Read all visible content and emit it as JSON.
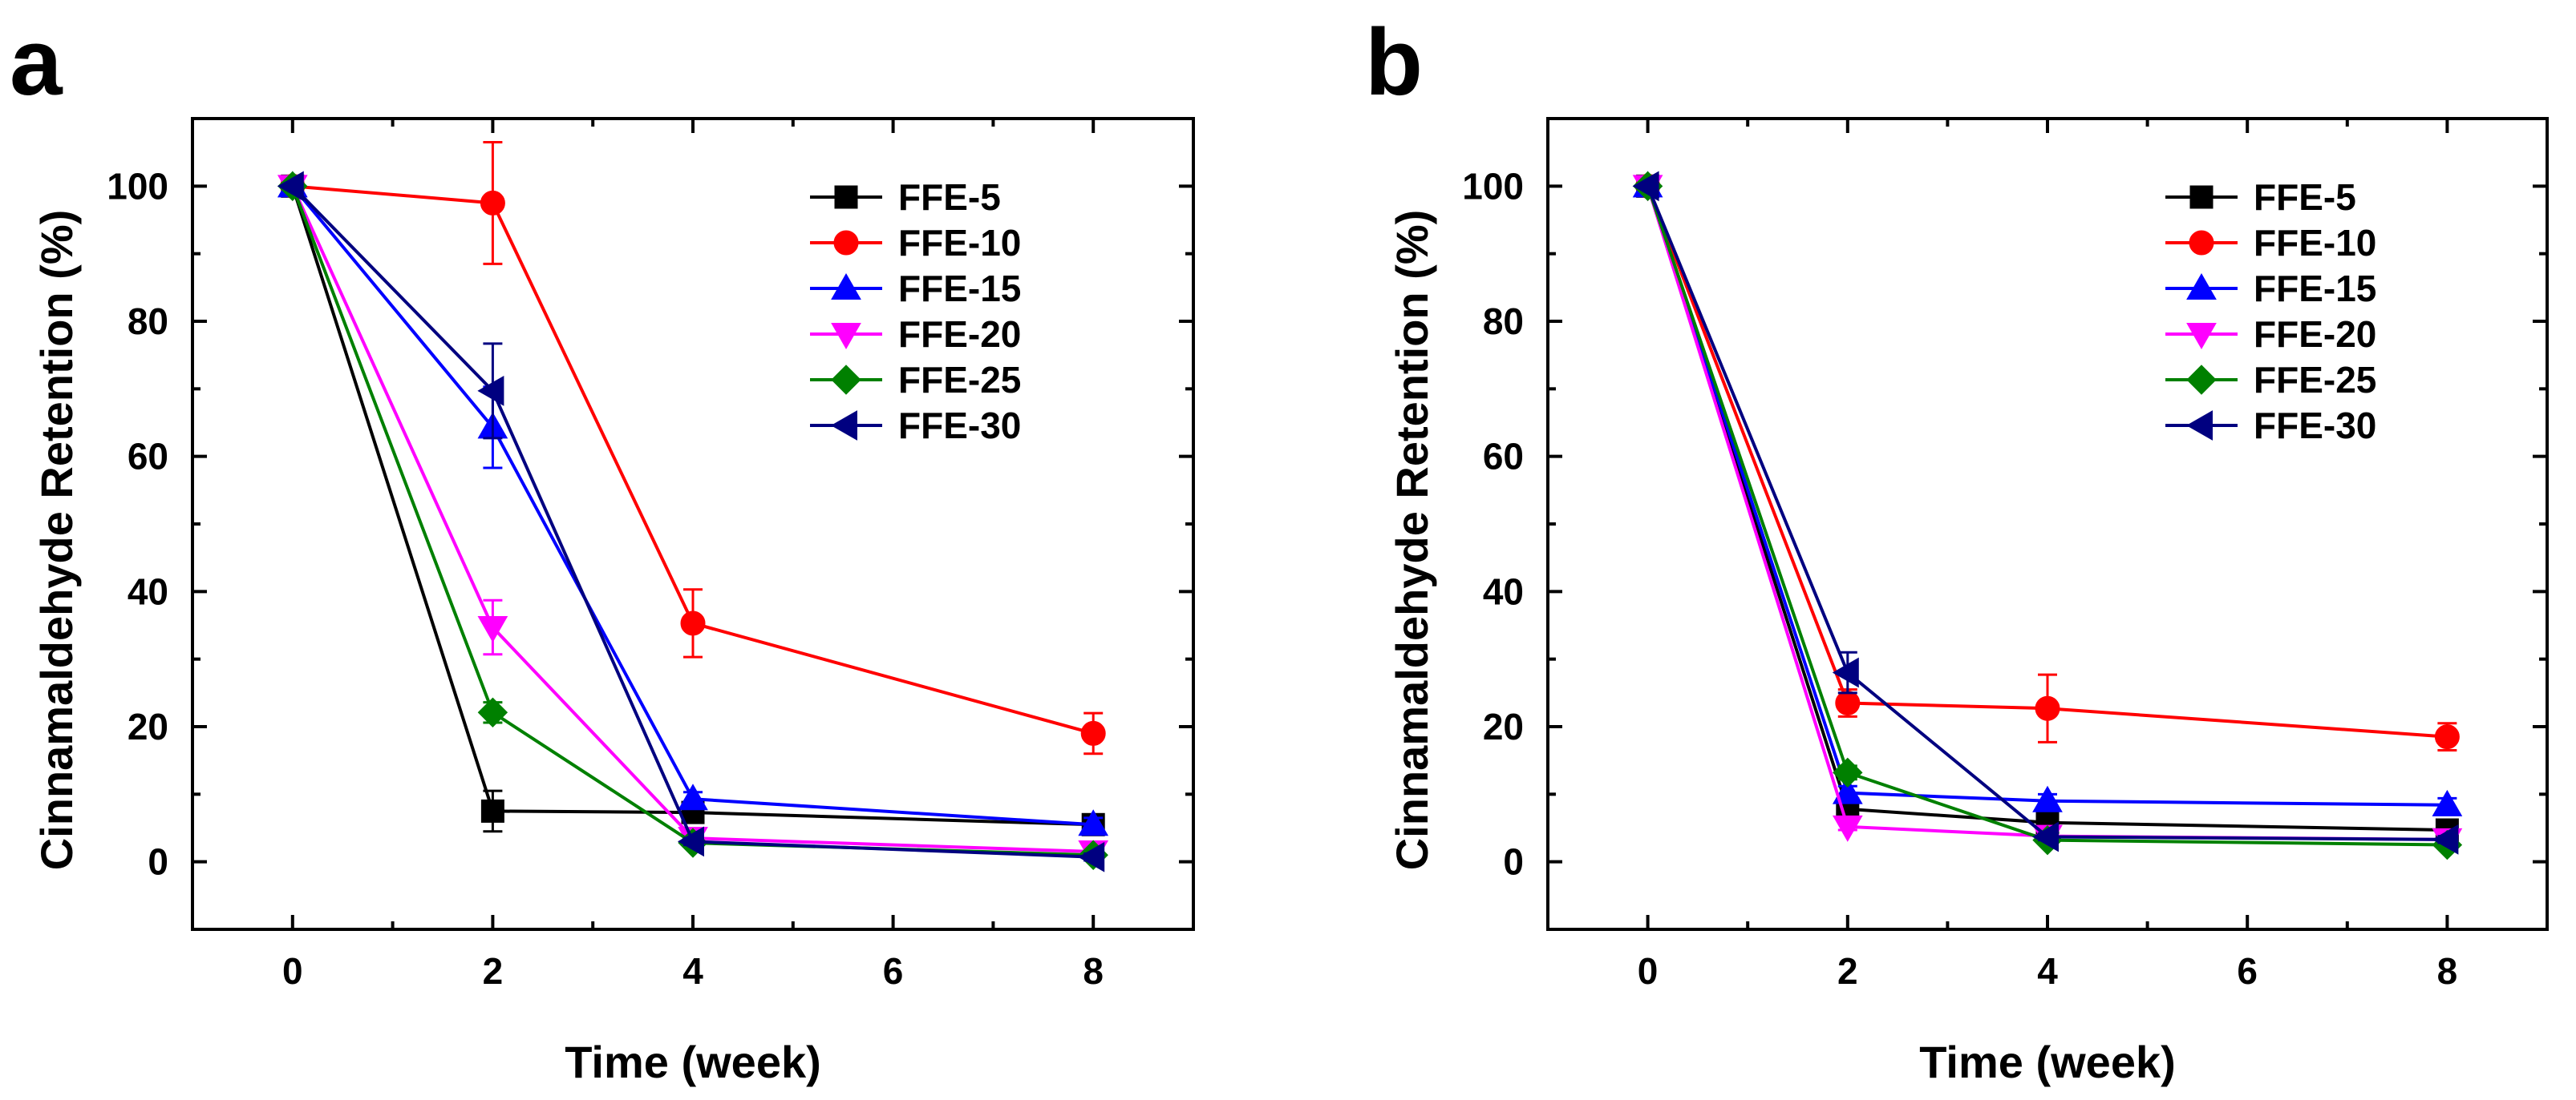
{
  "chart_data": [
    {
      "panel": "a",
      "type": "line",
      "title": "",
      "xlabel": "Time (week)",
      "ylabel": "Cinnamaldehyde Retention (%)",
      "xlim": [
        -1.0,
        9.0
      ],
      "ylim": [
        -10,
        110
      ],
      "xticks": [
        0,
        2,
        4,
        6,
        8
      ],
      "yticks": [
        0,
        20,
        40,
        60,
        80,
        100
      ],
      "legend_position": "top-right",
      "grid": false,
      "x": [
        0,
        2,
        4,
        8
      ],
      "series": [
        {
          "name": "FFE-5",
          "color": "#000000",
          "marker": "square",
          "values": [
            100,
            7.5,
            7.3,
            5.5
          ],
          "errors": [
            0,
            3,
            0,
            0
          ]
        },
        {
          "name": "FFE-10",
          "color": "#ff0000",
          "marker": "circle",
          "values": [
            100,
            97.5,
            35.3,
            19.0
          ],
          "errors": [
            0,
            9,
            5,
            3
          ]
        },
        {
          "name": "FFE-15",
          "color": "#0000ff",
          "marker": "triangle-up",
          "values": [
            100,
            64.3,
            9.3,
            5.5
          ],
          "errors": [
            0,
            6,
            1,
            1
          ]
        },
        {
          "name": "FFE-20",
          "color": "#ff00ff",
          "marker": "triangle-down",
          "values": [
            100,
            34.7,
            3.5,
            1.5
          ],
          "errors": [
            0,
            4,
            0.5,
            0.5
          ]
        },
        {
          "name": "FFE-25",
          "color": "#008000",
          "marker": "diamond",
          "values": [
            100,
            22.1,
            2.8,
            1.0
          ],
          "errors": [
            0,
            1.5,
            0.5,
            0.5
          ]
        },
        {
          "name": "FFE-30",
          "color": "#000080",
          "marker": "triangle-left",
          "values": [
            100,
            69.7,
            3.0,
            0.7
          ],
          "errors": [
            0,
            7,
            0.5,
            0.5
          ]
        }
      ]
    },
    {
      "panel": "b",
      "type": "line",
      "title": "",
      "xlabel": "Time (week)",
      "ylabel": "Cinnamaldehyde Retention (%)",
      "xlim": [
        -1.0,
        9.0
      ],
      "ylim": [
        -10,
        110
      ],
      "xticks": [
        0,
        2,
        4,
        6,
        8
      ],
      "yticks": [
        0,
        20,
        40,
        60,
        80,
        100
      ],
      "legend_position": "top-right",
      "grid": false,
      "x": [
        0,
        2,
        4,
        8
      ],
      "series": [
        {
          "name": "FFE-5",
          "color": "#000000",
          "marker": "square",
          "values": [
            100,
            7.8,
            5.8,
            4.7
          ],
          "errors": [
            0,
            1,
            0.5,
            0.5
          ]
        },
        {
          "name": "FFE-10",
          "color": "#ff0000",
          "marker": "circle",
          "values": [
            100,
            23.5,
            22.7,
            18.5
          ],
          "errors": [
            0,
            2,
            5,
            2
          ]
        },
        {
          "name": "FFE-15",
          "color": "#0000ff",
          "marker": "triangle-up",
          "values": [
            100,
            10.2,
            9.0,
            8.4
          ],
          "errors": [
            0,
            1,
            1,
            1
          ]
        },
        {
          "name": "FFE-20",
          "color": "#ff00ff",
          "marker": "triangle-down",
          "values": [
            100,
            5.2,
            3.8,
            3.3
          ],
          "errors": [
            0,
            0.5,
            0.5,
            0.5
          ]
        },
        {
          "name": "FFE-25",
          "color": "#008000",
          "marker": "diamond",
          "values": [
            100,
            13.2,
            3.2,
            2.5
          ],
          "errors": [
            0,
            1,
            0.5,
            0.5
          ]
        },
        {
          "name": "FFE-30",
          "color": "#000080",
          "marker": "triangle-left",
          "values": [
            100,
            28.0,
            3.7,
            3.3
          ],
          "errors": [
            0,
            3,
            0.5,
            0.5
          ]
        }
      ]
    }
  ]
}
